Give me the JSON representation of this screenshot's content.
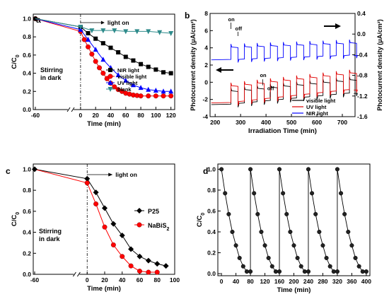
{
  "chart_data": [
    {
      "type": "line",
      "panel_label": "a",
      "xlabel": "Time (min)",
      "ylabel": "C/C0",
      "xlim": [
        -60,
        125
      ],
      "ylim": [
        0,
        1.05
      ],
      "xticks": [
        "-60",
        "0",
        "20",
        "40",
        "60",
        "80",
        "100",
        "120"
      ],
      "yticks": [
        "0.0",
        "0.2",
        "0.4",
        "0.6",
        "0.8",
        "1.0"
      ],
      "annotations": [
        "light on",
        "Stirring",
        "in dark"
      ],
      "legend_position": "bottom-right",
      "series": [
        {
          "name": "NIR light",
          "color": "#000000",
          "marker": "square",
          "x": [
            -60,
            0,
            10,
            20,
            30,
            40,
            50,
            60,
            70,
            80,
            90,
            100,
            110,
            120
          ],
          "y": [
            1.0,
            0.91,
            0.84,
            0.78,
            0.73,
            0.68,
            0.63,
            0.58,
            0.54,
            0.5,
            0.47,
            0.44,
            0.41,
            0.4
          ]
        },
        {
          "name": "visible light",
          "color": "#ff0000",
          "marker": "circle",
          "x": [
            -60,
            0,
            5,
            10,
            15,
            20,
            25,
            30,
            35,
            40,
            45,
            50,
            55,
            60,
            65,
            70,
            75,
            80,
            90,
            100,
            110,
            120
          ],
          "y": [
            1.0,
            0.86,
            0.77,
            0.69,
            0.61,
            0.53,
            0.46,
            0.4,
            0.34,
            0.29,
            0.25,
            0.22,
            0.2,
            0.18,
            0.17,
            0.16,
            0.155,
            0.15,
            0.15,
            0.15,
            0.15,
            0.15
          ]
        },
        {
          "name": "UV light",
          "color": "#0000ff",
          "marker": "triangle",
          "x": [
            -60,
            0,
            10,
            20,
            30,
            40,
            50,
            60,
            70,
            80,
            90,
            100,
            110,
            120
          ],
          "y": [
            1.0,
            0.88,
            0.77,
            0.66,
            0.55,
            0.46,
            0.38,
            0.32,
            0.27,
            0.24,
            0.22,
            0.21,
            0.2,
            0.2
          ]
        },
        {
          "name": "blank",
          "color": "#2e8b8b",
          "marker": "triangle-down",
          "x": [
            -60,
            0,
            15,
            30,
            45,
            60,
            75,
            90,
            105,
            120
          ],
          "y": [
            1.0,
            0.91,
            0.87,
            0.87,
            0.87,
            0.86,
            0.86,
            0.86,
            0.85,
            0.84
          ]
        }
      ]
    },
    {
      "type": "line",
      "panel_label": "b",
      "xlabel": "Irradiation Time (min)",
      "ylabel": "Photocurrent density (μA/cm²)",
      "ylabel_right": "Photocurrent density (μA/cm²)",
      "xlim": [
        180,
        750
      ],
      "ylim": [
        -4,
        8
      ],
      "ylim_right": [
        -1.6,
        0.4
      ],
      "xticks": [
        "200",
        "300",
        "400",
        "500",
        "600",
        "700"
      ],
      "yticks": [
        "-4",
        "-2",
        "0",
        "2",
        "4",
        "6",
        "8"
      ],
      "yticks_right": [
        "-1.6",
        "-1.2",
        "-0.8",
        "-0.4",
        "0.0",
        "0.4"
      ],
      "annotations": [
        "on",
        "off",
        "on",
        "off"
      ],
      "legend_position": "bottom-right",
      "series": [
        {
          "name": "visible light",
          "color": "#000000",
          "base": -2.6,
          "step": 1.6,
          "drift": 1.3
        },
        {
          "name": "UV light",
          "color": "#e00000",
          "base": -2.4,
          "step": 2.0,
          "drift": 1.5
        },
        {
          "name": "NIR light",
          "color": "#0000ff",
          "base": 2.6,
          "step": 1.5,
          "drift": 0.5
        }
      ],
      "on_times": [
        262,
        315,
        365,
        417,
        468,
        520,
        572,
        624,
        676,
        728
      ],
      "pulse_width": 28
    },
    {
      "type": "line",
      "panel_label": "c",
      "xlabel": "Time (min)",
      "ylabel": "C/C0",
      "xlim": [
        -60,
        100
      ],
      "ylim": [
        0,
        1.05
      ],
      "xticks": [
        "-60",
        "0",
        "20",
        "40",
        "60",
        "80",
        "100"
      ],
      "yticks": [
        "0.0",
        "0.2",
        "0.4",
        "0.6",
        "0.8",
        "1.0"
      ],
      "annotations": [
        "light on",
        "Stirring",
        "in dark"
      ],
      "legend_position": "right",
      "series": [
        {
          "name": "P25",
          "color": "#000000",
          "marker": "diamond",
          "x": [
            -60,
            0,
            10,
            20,
            30,
            40,
            50,
            60,
            70,
            80,
            90
          ],
          "y": [
            1.0,
            0.91,
            0.78,
            0.63,
            0.48,
            0.37,
            0.24,
            0.17,
            0.13,
            0.1,
            0.08
          ]
        },
        {
          "name": "NaBiS2",
          "color": "#ff0000",
          "marker": "circle",
          "x": [
            -60,
            0,
            10,
            20,
            30,
            40,
            50,
            60,
            70,
            80
          ],
          "y": [
            1.0,
            0.87,
            0.67,
            0.45,
            0.28,
            0.17,
            0.08,
            0.03,
            0.02,
            0.02
          ]
        }
      ]
    },
    {
      "type": "line",
      "panel_label": "d",
      "xlabel": "Time (min)",
      "ylabel": "C/C0",
      "xlim": [
        -10,
        410
      ],
      "ylim": [
        -0.02,
        1.05
      ],
      "xticks": [
        "0",
        "40",
        "80",
        "120",
        "160",
        "200",
        "240",
        "280",
        "320",
        "360",
        "400"
      ],
      "yticks": [
        "0.0",
        "0.2",
        "0.4",
        "0.6",
        "0.8",
        "1.0"
      ],
      "cycle_x": [
        0,
        10,
        20,
        30,
        40,
        50,
        60,
        70,
        80
      ],
      "cycle_y": [
        1.0,
        0.77,
        0.57,
        0.4,
        0.27,
        0.15,
        0.07,
        0.02,
        0.02
      ],
      "cycle_starts": [
        0,
        80,
        160,
        240,
        320
      ]
    }
  ]
}
